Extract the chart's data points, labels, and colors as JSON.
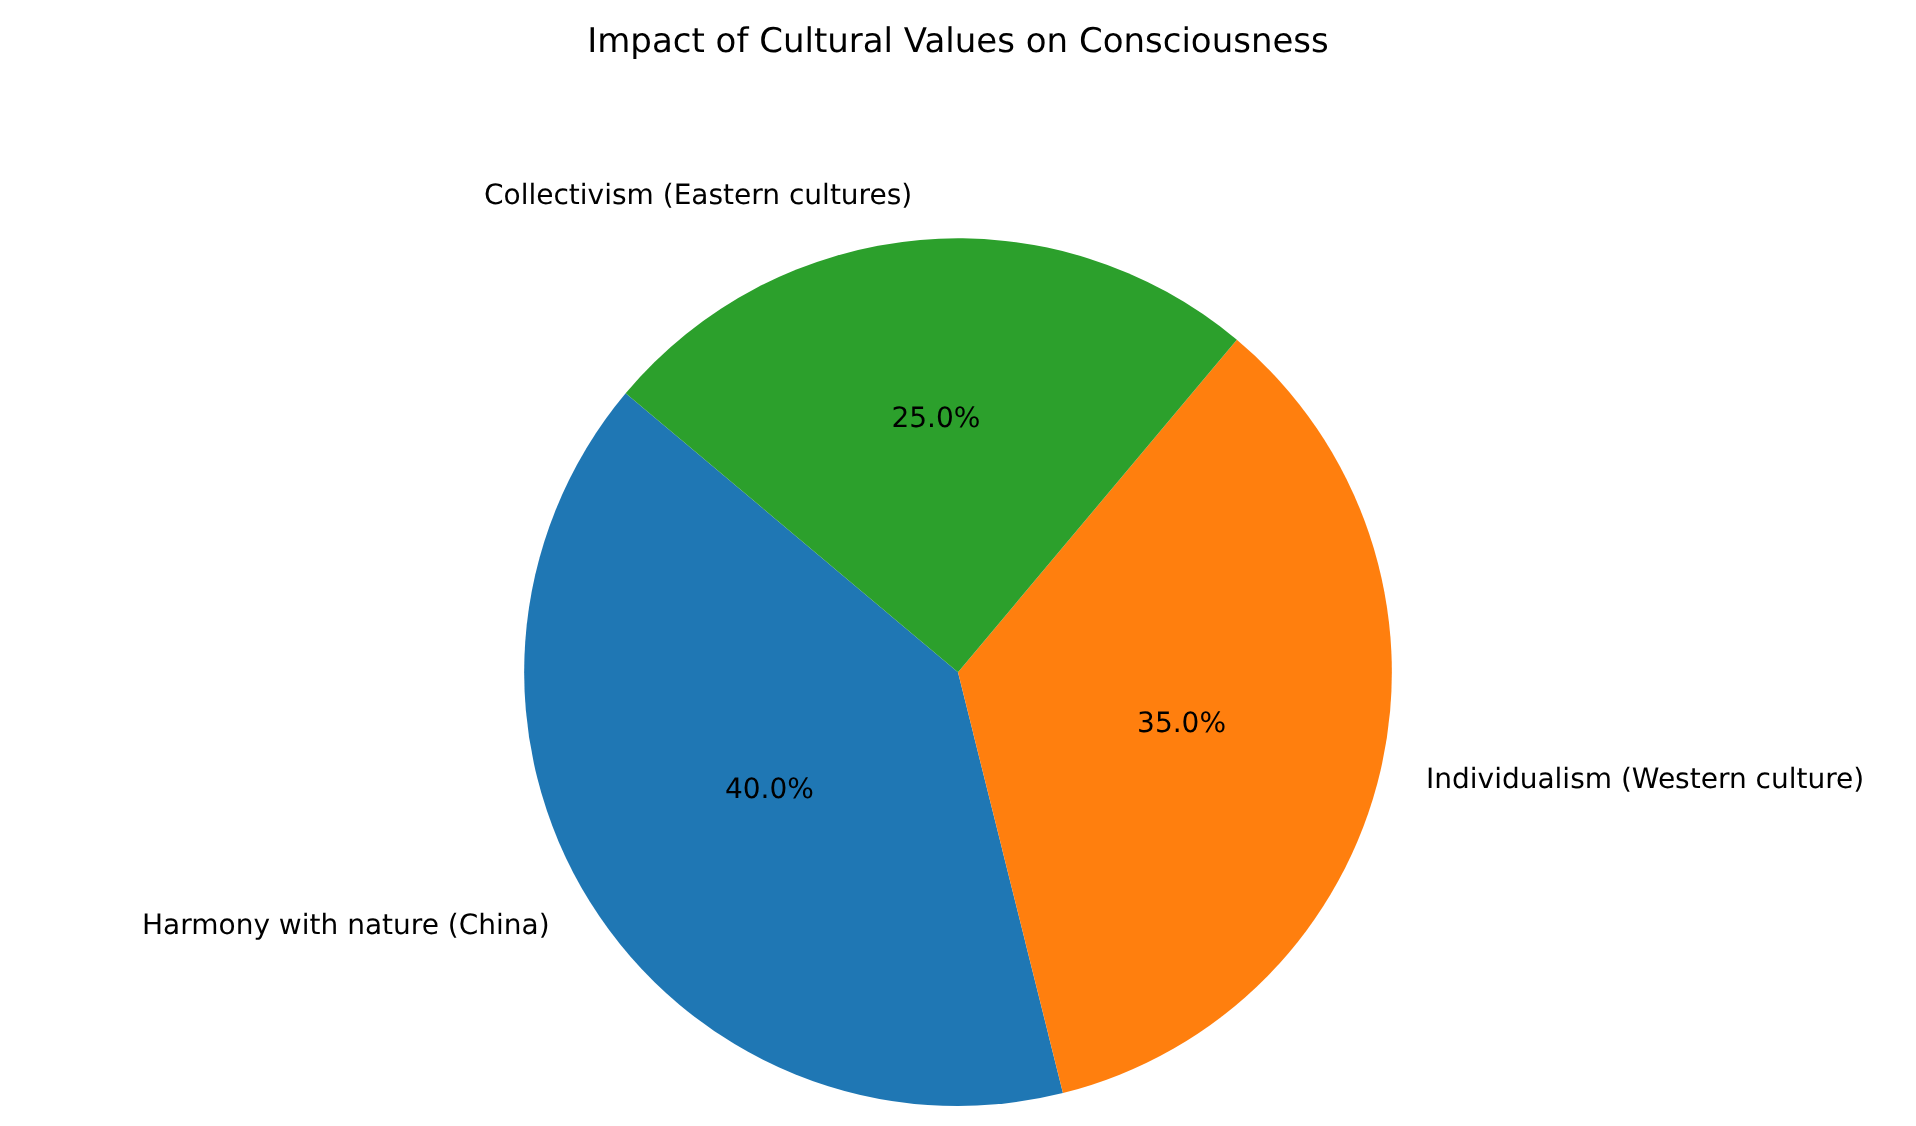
{
  "chart_data": {
    "type": "pie",
    "title": "Impact of Cultural Values on Consciousness",
    "categories": [
      "Harmony with nature (China)",
      "Individualism (Western culture)",
      "Collectivism (Eastern cultures)"
    ],
    "values": [
      40,
      35,
      25
    ],
    "value_labels": [
      "40.0%",
      "35.0%",
      "25.0%"
    ],
    "colors": [
      "#1f77b4",
      "#ff7f0e",
      "#2ca02c"
    ],
    "legend": false
  }
}
